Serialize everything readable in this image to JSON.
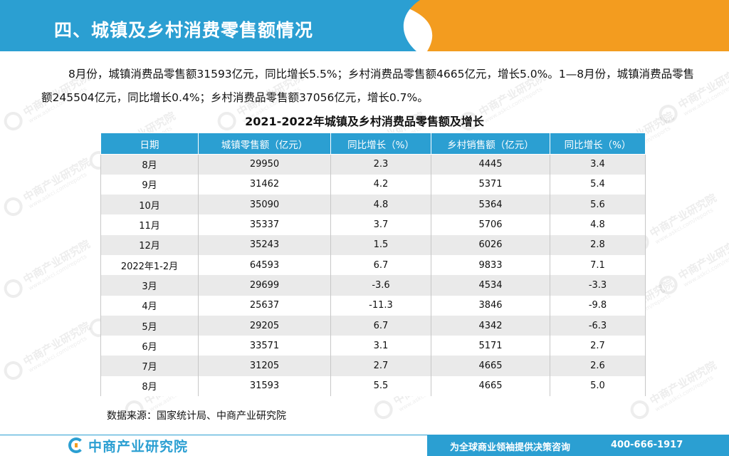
{
  "header": {
    "title": "四、城镇及乡村消费零售额情况",
    "colors": {
      "primary": "#2b9fd2",
      "accent": "#f39c1f"
    }
  },
  "intro": {
    "paragraph": "8月份，城镇消费品零售额31593亿元，同比增长5.5%；乡村消费品零售额4665亿元，增长5.0%。1—8月份，城镇消费品零售额245504亿元，同比增长0.4%；乡村消费品零售额37056亿元，增长0.7%。"
  },
  "table": {
    "title": "2021-2022年城镇及乡村消费品零售额及增长",
    "headers": [
      "日期",
      "城镇零售额（亿元）",
      "同比增长（%）",
      "乡村销售额（亿元）",
      "同比增长（%）"
    ],
    "rows": [
      [
        "8月",
        "29950",
        "2.3",
        "4445",
        "3.4"
      ],
      [
        "9月",
        "31462",
        "4.2",
        "5371",
        "5.4"
      ],
      [
        "10月",
        "35090",
        "4.8",
        "5364",
        "5.6"
      ],
      [
        "11月",
        "35337",
        "3.7",
        "5706",
        "4.8"
      ],
      [
        "12月",
        "35243",
        "1.5",
        "6026",
        "2.8"
      ],
      [
        "2022年1-2月",
        "64593",
        "6.7",
        "9833",
        "7.1"
      ],
      [
        "3月",
        "29699",
        "-3.6",
        "4534",
        "-3.3"
      ],
      [
        "4月",
        "25637",
        "-11.3",
        "3846",
        "-9.8"
      ],
      [
        "5月",
        "29205",
        "6.7",
        "4342",
        "-6.3"
      ],
      [
        "6月",
        "33571",
        "3.1",
        "5171",
        "2.7"
      ],
      [
        "7月",
        "31205",
        "2.7",
        "4665",
        "2.6"
      ],
      [
        "8月",
        "31593",
        "5.5",
        "4665",
        "5.0"
      ]
    ]
  },
  "source": "数据来源：国家统计局、中商产业研究院",
  "watermark": {
    "name": "中商产业研究院",
    "url": "www.askci.com/reports"
  },
  "footer": {
    "logo_text": "中商产业研究院",
    "slogan": "为全球商业领袖提供决策咨询",
    "phone": "400-666-1917"
  }
}
